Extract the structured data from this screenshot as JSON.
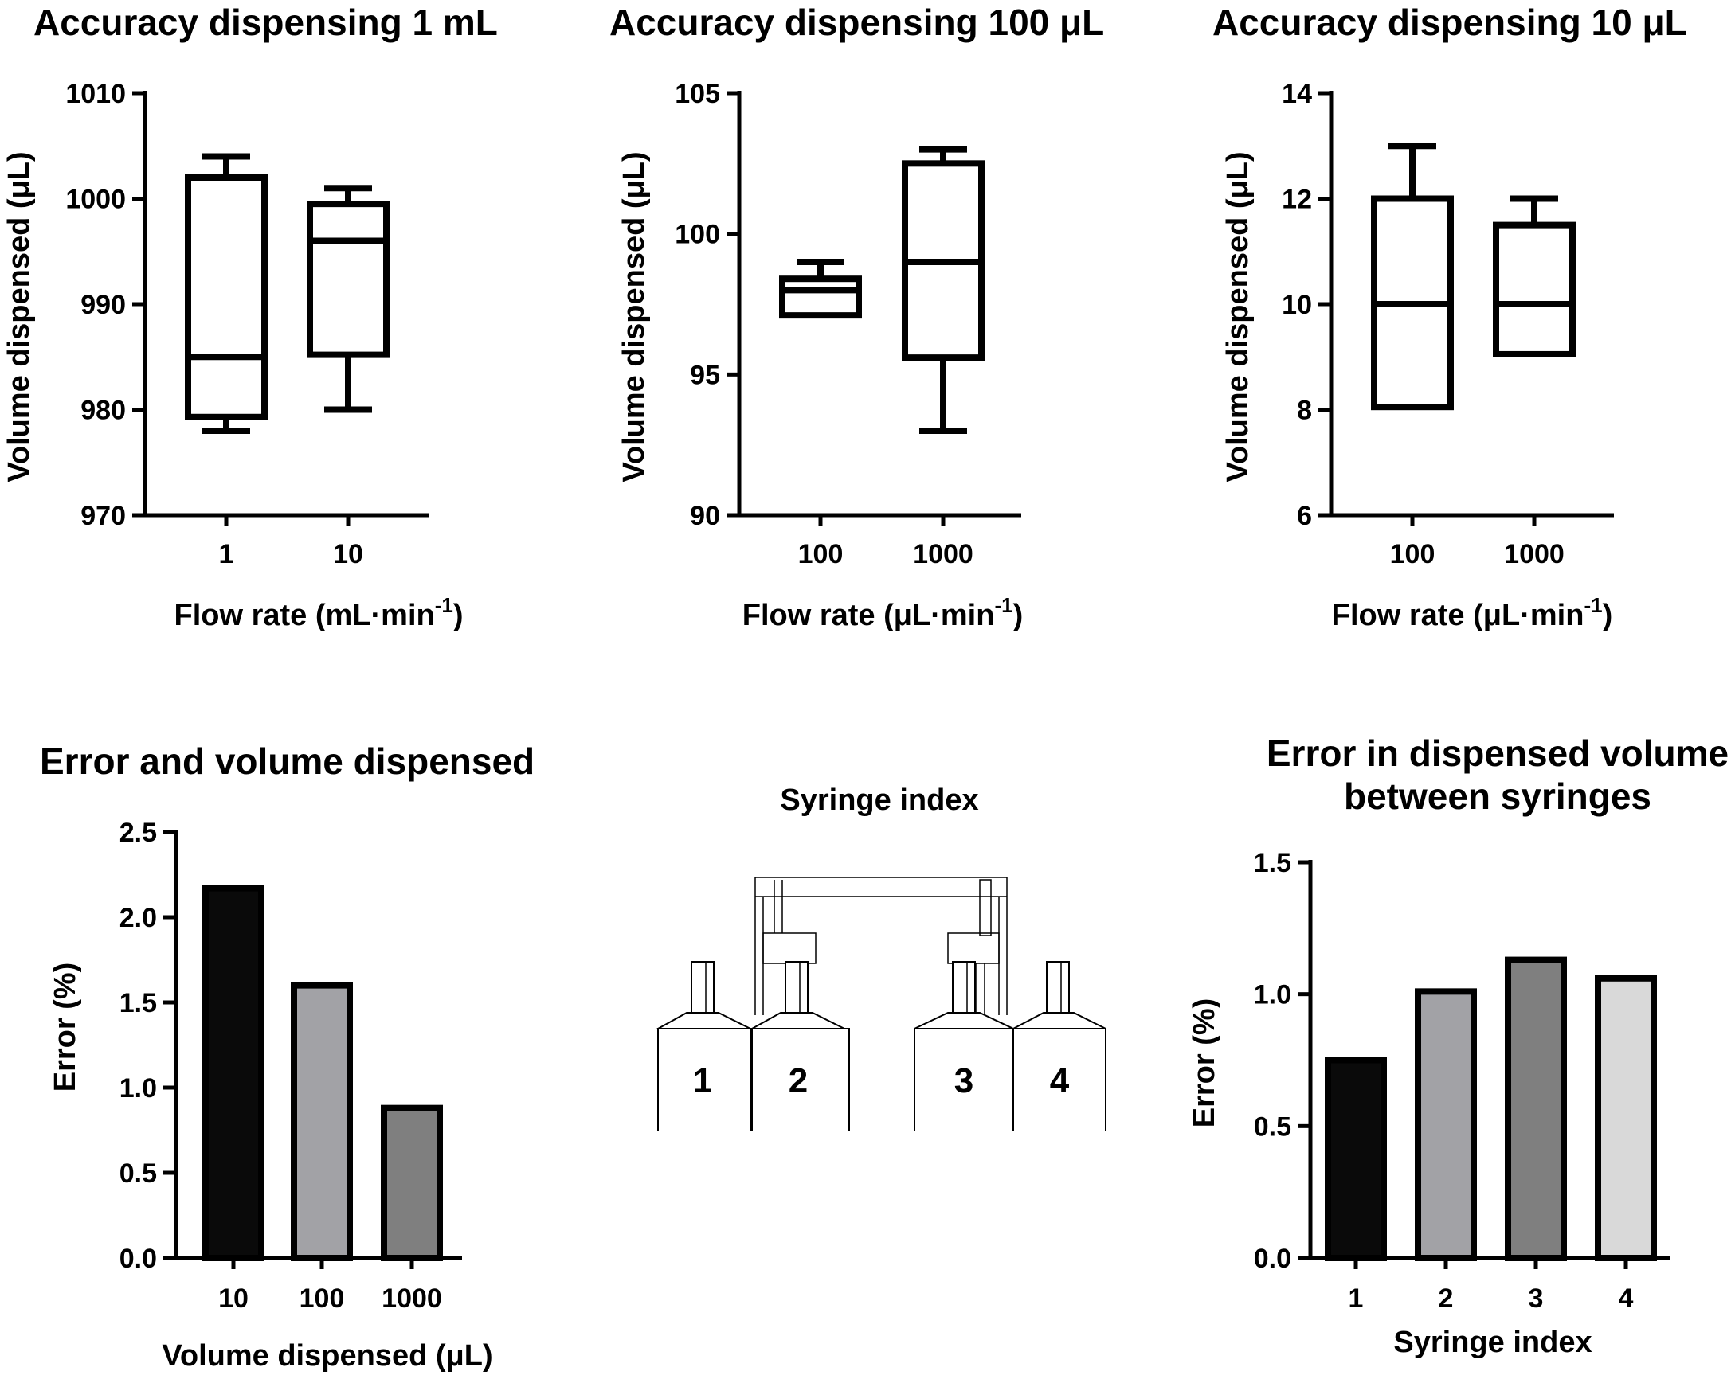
{
  "colors": {
    "black": "#000000",
    "gray_dark": "#7f7f7f",
    "gray_mid": "#a2a2a6",
    "gray_light": "#d9d9d9"
  },
  "chart_data": [
    {
      "type": "box",
      "title": "Accuracy dispensing 1 mL",
      "xlabel": "Flow rate (mL·min",
      "xlabel_sup": "-1",
      "xlabel_end": ")",
      "ylabel": "Volume dispensed (μL)",
      "ylim": [
        970,
        1010
      ],
      "yticks": [
        970,
        980,
        990,
        1000,
        1010
      ],
      "categories": [
        "1",
        "10"
      ],
      "boxes": [
        {
          "min": 978,
          "q1": 979.3,
          "median": 985,
          "q3": 1002,
          "max": 1004
        },
        {
          "min": 980,
          "q1": 985.2,
          "median": 996,
          "q3": 999.5,
          "max": 1001
        }
      ]
    },
    {
      "type": "box",
      "title": "Accuracy dispensing 100 μL",
      "xlabel": "Flow rate (μL·min",
      "xlabel_sup": "-1",
      "xlabel_end": ")",
      "ylabel": "Volume dispensed (μL)",
      "ylim": [
        90,
        105
      ],
      "yticks": [
        90,
        95,
        100,
        105
      ],
      "categories": [
        "100",
        "1000"
      ],
      "boxes": [
        {
          "min": 97.1,
          "q1": 97.1,
          "median": 98,
          "q3": 98.4,
          "max": 99
        },
        {
          "min": 93,
          "q1": 95.6,
          "median": 99,
          "q3": 102.5,
          "max": 103
        }
      ]
    },
    {
      "type": "box",
      "title": "Accuracy dispensing 10 μL",
      "xlabel": "Flow rate (μL·min",
      "xlabel_sup": "-1",
      "xlabel_end": ")",
      "ylabel": "Volume dispensed (μL)",
      "ylim": [
        6,
        14
      ],
      "yticks": [
        6,
        8,
        10,
        12,
        14
      ],
      "categories": [
        "100",
        "1000"
      ],
      "boxes": [
        {
          "min": 8.05,
          "q1": 8.05,
          "median": 10,
          "q3": 12,
          "max": 13
        },
        {
          "min": 9.05,
          "q1": 9.05,
          "median": 10,
          "q3": 11.5,
          "max": 12
        }
      ]
    },
    {
      "type": "bar",
      "title": "Error and volume dispensed",
      "xlabel": "Volume dispensed (μL)",
      "ylabel": "Error (%)",
      "ylim": [
        0,
        2.5
      ],
      "yticks": [
        "0.0",
        "0.5",
        "1.0",
        "1.5",
        "2.0",
        "2.5"
      ],
      "categories": [
        "10",
        "100",
        "1000"
      ],
      "values": [
        2.17,
        1.6,
        0.88
      ],
      "bar_colors": [
        "#0a0a0a",
        "#a2a2a6",
        "#7f7f7f"
      ]
    },
    {
      "type": "bar",
      "title_line1": "Error in dispensed volume",
      "title_line2": "between syringes",
      "xlabel": "Syringe index",
      "ylabel": "Error (%)",
      "ylim": [
        0,
        1.5
      ],
      "yticks": [
        "0.0",
        "0.5",
        "1.0",
        "1.5"
      ],
      "categories": [
        "1",
        "2",
        "3",
        "4"
      ],
      "values": [
        0.75,
        1.01,
        1.13,
        1.06
      ],
      "bar_colors": [
        "#0a0a0a",
        "#a2a2a6",
        "#7f7f7f",
        "#d9d9d9"
      ]
    }
  ],
  "diagram": {
    "title": "Syringe index",
    "labels": [
      "1",
      "2",
      "3",
      "4"
    ]
  }
}
